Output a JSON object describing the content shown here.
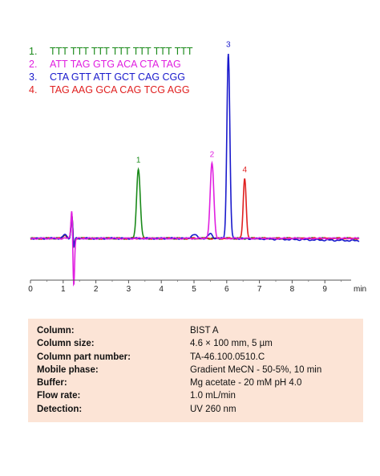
{
  "chart_data": {
    "type": "line",
    "xunit": "min",
    "xlim": [
      0,
      10
    ],
    "xticks": [
      "0",
      "1",
      "2",
      "3",
      "4",
      "5",
      "6",
      "7",
      "8",
      "9"
    ],
    "legend": [
      {
        "num": "1.",
        "seq": "TTT TTT TTT TTT TTT TTT TTT",
        "color": "#1a8a1a"
      },
      {
        "num": "2.",
        "seq": "ATT TAG GTG ACA CTA TAG",
        "color": "#e020e0"
      },
      {
        "num": "3.",
        "seq": "CTA GTT ATT GCT CAG CGG",
        "color": "#1a1acc"
      },
      {
        "num": "4.",
        "seq": "TAG AAG GCA CAG TCG AGG",
        "color": "#e02020"
      }
    ],
    "peaks": [
      {
        "label": "1",
        "rt": 3.3,
        "height": 0.36,
        "color": "#1a8a1a"
      },
      {
        "label": "2",
        "rt": 5.55,
        "height": 0.39,
        "color": "#e020e0"
      },
      {
        "label": "3",
        "rt": 6.05,
        "height": 0.96,
        "color": "#1a1acc"
      },
      {
        "label": "4",
        "rt": 6.55,
        "height": 0.31,
        "color": "#e02020"
      }
    ]
  },
  "conditions": [
    {
      "label": "Column:",
      "value": "BIST A"
    },
    {
      "label": "Column size:",
      "value": "4.6 × 100 mm, 5 µm"
    },
    {
      "label": "Column part number:",
      "value": "TA-46.100.0510.C"
    },
    {
      "label": "Mobile phase:",
      "value": "Gradient  MeCN  - 50-5%, 10 min"
    },
    {
      "label": "Buffer:",
      "value": "Mg acetate - 20 mM  pH 4.0"
    },
    {
      "label": "Flow rate:",
      "value": "1.0 mL/min"
    },
    {
      "label": "Detection:",
      "value": "UV 260 nm"
    }
  ]
}
